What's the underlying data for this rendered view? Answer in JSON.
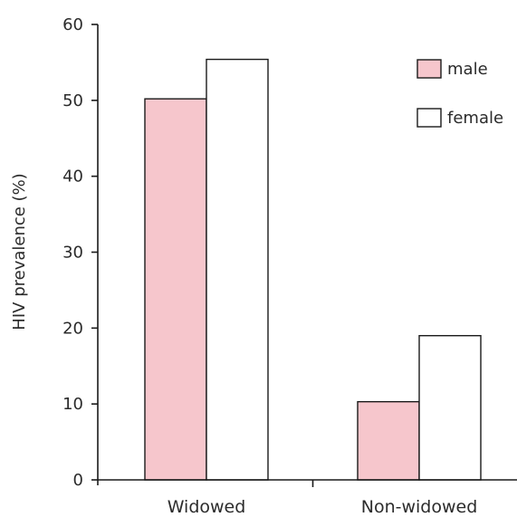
{
  "chart_data": {
    "type": "bar",
    "title": "",
    "xlabel": "",
    "ylabel": "HIV prevalence (%)",
    "ylim": [
      0,
      60
    ],
    "yticks": [
      0,
      10,
      20,
      30,
      40,
      50,
      60
    ],
    "categories": [
      "Widowed",
      "Non-widowed"
    ],
    "series": [
      {
        "name": "male",
        "values": [
          50.2,
          10.3
        ],
        "color": "#f6c6cc"
      },
      {
        "name": "female",
        "values": [
          55.4,
          19.0
        ],
        "color": "#ffffff"
      }
    ],
    "grid": false,
    "legend_position": "top-right"
  },
  "colors": {
    "axis": "#1a1a1a",
    "bar_stroke": "#1a1a1a",
    "text": "#2b2b2b"
  }
}
